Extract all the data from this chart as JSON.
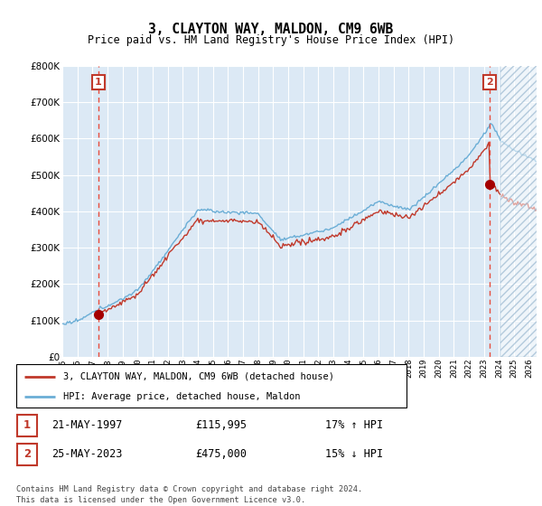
{
  "title": "3, CLAYTON WAY, MALDON, CM9 6WB",
  "subtitle": "Price paid vs. HM Land Registry's House Price Index (HPI)",
  "legend_line1": "3, CLAYTON WAY, MALDON, CM9 6WB (detached house)",
  "legend_line2": "HPI: Average price, detached house, Maldon",
  "sale1_date": "21-MAY-1997",
  "sale1_price": "£115,995",
  "sale1_hpi": "17% ↑ HPI",
  "sale2_date": "25-MAY-2023",
  "sale2_price": "£475,000",
  "sale2_hpi": "15% ↓ HPI",
  "footer": "Contains HM Land Registry data © Crown copyright and database right 2024.\nThis data is licensed under the Open Government Licence v3.0.",
  "ylim": [
    0,
    800000
  ],
  "yticks": [
    0,
    100000,
    200000,
    300000,
    400000,
    500000,
    600000,
    700000,
    800000
  ],
  "ytick_labels": [
    "£0",
    "£100K",
    "£200K",
    "£300K",
    "£400K",
    "£500K",
    "£600K",
    "£700K",
    "£800K"
  ],
  "background_color": "#dce9f5",
  "line_color_hpi": "#6baed6",
  "line_color_price": "#c0392b",
  "marker_color": "#a50000",
  "dashed_line_color": "#e74c3c",
  "sale1_year_x": 1997.38,
  "sale2_year_x": 2023.38,
  "sale1_value": 115995,
  "sale2_value": 475000,
  "xlim_start": 1995,
  "xlim_end": 2026.5,
  "future_start": 2024.1,
  "xtick_start": 1995,
  "xtick_end": 2027
}
